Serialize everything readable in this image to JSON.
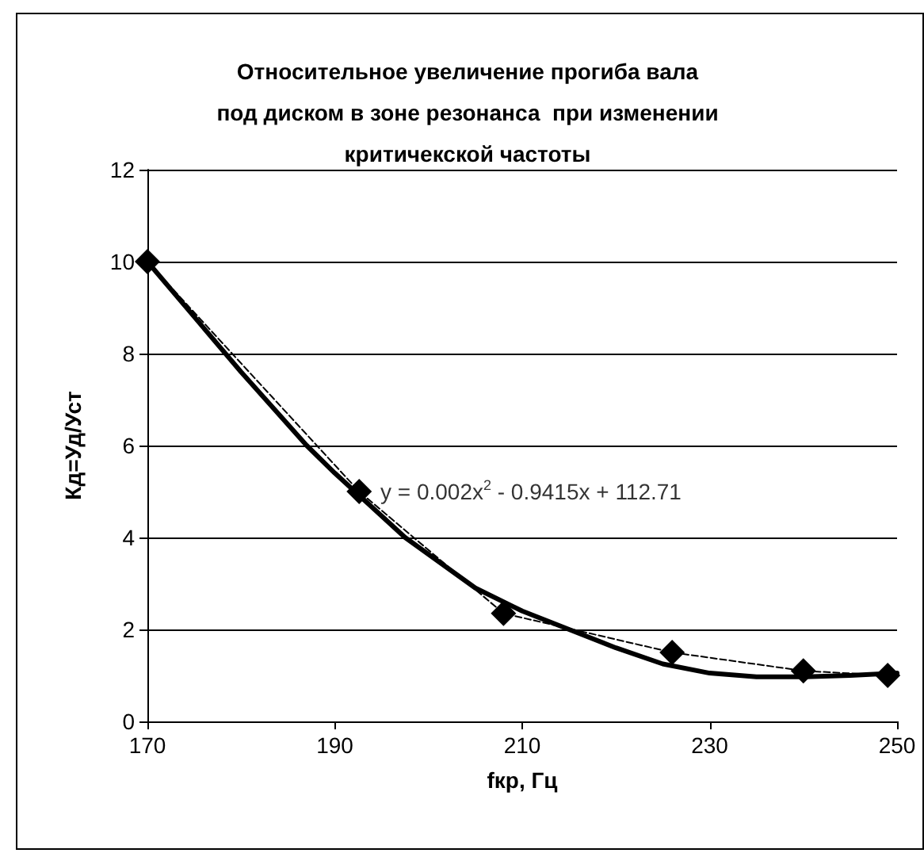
{
  "chart_data": {
    "type": "line",
    "title": "Относительное увеличение прогиба вала\nпод диском в зоне резонанса  при изменении\nкритичекской частоты",
    "xlabel": "fкр, Гц",
    "ylabel": "Кд=Уд/Уст",
    "xlim": [
      170,
      250
    ],
    "xticks": [
      170,
      190,
      210,
      230,
      250
    ],
    "ylim": [
      0,
      12
    ],
    "yticks": [
      0,
      2,
      4,
      6,
      8,
      10,
      12
    ],
    "grid": "y",
    "series": [
      {
        "color": "#000000",
        "marker": "diamond",
        "line_style": "dashed",
        "x": [
          170,
          192.6,
          208,
          226,
          240,
          249
        ],
        "values": [
          10,
          5,
          2.35,
          1.5,
          1.1,
          1
        ]
      },
      {
        "color": "#000000",
        "marker": "none",
        "line_style": "solid",
        "x": [
          170,
          175,
          180,
          187,
          190,
          197.5,
          205,
          210,
          215,
          220,
          225,
          230,
          235,
          240,
          245,
          250
        ],
        "values": [
          10,
          8.8,
          7.6,
          6,
          5.4,
          4,
          2.9,
          2.4,
          2,
          1.6,
          1.25,
          1.05,
          0.97,
          0.97,
          1,
          1.05
        ]
      }
    ],
    "annotations": [
      {
        "text": "y = 0.002x$^{2}$ - 0.9415x + 112.71",
        "x": 193,
        "y": 5
      }
    ]
  }
}
